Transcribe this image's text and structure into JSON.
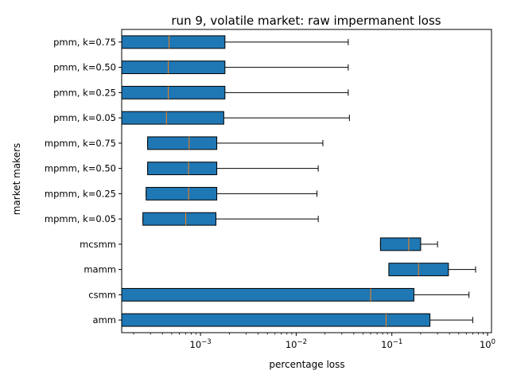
{
  "chart_data": {
    "type": "boxplot-horizontal",
    "title": "run 9, volatile market: raw impermanent loss",
    "xlabel": "percentage loss",
    "ylabel": "market makers",
    "xscale": "log",
    "xlim": [
      0.00015,
      1.1
    ],
    "x_ticks": [
      {
        "value": 0.001,
        "base": "10",
        "exp": "−3"
      },
      {
        "value": 0.01,
        "base": "10",
        "exp": "−2"
      },
      {
        "value": 0.1,
        "base": "10",
        "exp": "−1"
      },
      {
        "value": 1,
        "base": "10",
        "exp": "0"
      }
    ],
    "grid": false,
    "colors": {
      "box_fill": "#1f77b4",
      "median": "#ff7f0e",
      "edge": "#000000"
    },
    "series": [
      {
        "name": "pmm, k=0.75",
        "whislo": 0.00015,
        "q1": 0.00015,
        "med": 0.00047,
        "q3": 0.0018,
        "whishi": 0.035
      },
      {
        "name": "pmm, k=0.50",
        "whislo": 0.00015,
        "q1": 0.00015,
        "med": 0.00046,
        "q3": 0.0018,
        "whishi": 0.035
      },
      {
        "name": "pmm, k=0.25",
        "whislo": 0.00015,
        "q1": 0.00015,
        "med": 0.00046,
        "q3": 0.0018,
        "whishi": 0.035
      },
      {
        "name": "pmm, k=0.05",
        "whislo": 0.00015,
        "q1": 0.00015,
        "med": 0.00044,
        "q3": 0.00175,
        "whishi": 0.036
      },
      {
        "name": "mpmm, k=0.75",
        "whislo": 0.00028,
        "q1": 0.00028,
        "med": 0.00076,
        "q3": 0.00148,
        "whishi": 0.019
      },
      {
        "name": "mpmm, k=0.50",
        "whislo": 0.00028,
        "q1": 0.00028,
        "med": 0.00075,
        "q3": 0.00148,
        "whishi": 0.017
      },
      {
        "name": "mpmm, k=0.25",
        "whislo": 0.00027,
        "q1": 0.00027,
        "med": 0.00075,
        "q3": 0.00148,
        "whishi": 0.0165
      },
      {
        "name": "mpmm, k=0.05",
        "whislo": 0.00025,
        "q1": 0.00025,
        "med": 0.0007,
        "q3": 0.00145,
        "whishi": 0.017
      },
      {
        "name": "mcsmm",
        "whislo": 0.076,
        "q1": 0.076,
        "med": 0.15,
        "q3": 0.2,
        "whishi": 0.3
      },
      {
        "name": "mamm",
        "whislo": 0.093,
        "q1": 0.093,
        "med": 0.19,
        "q3": 0.39,
        "whishi": 0.75
      },
      {
        "name": "csmm",
        "whislo": 0.00015,
        "q1": 0.00015,
        "med": 0.06,
        "q3": 0.17,
        "whishi": 0.64
      },
      {
        "name": "amm",
        "whislo": 0.00015,
        "q1": 0.00015,
        "med": 0.087,
        "q3": 0.25,
        "whishi": 0.7
      }
    ]
  }
}
